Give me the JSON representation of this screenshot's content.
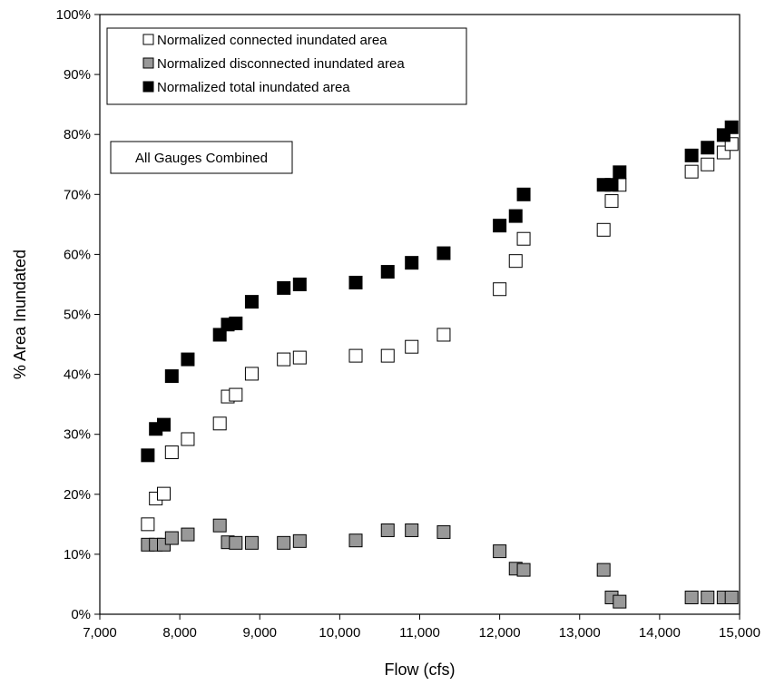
{
  "chart_data": {
    "type": "scatter",
    "title": "",
    "xlabel": "Flow (cfs)",
    "ylabel": "% Area Inundated",
    "xlim": [
      7000,
      15000
    ],
    "ylim": [
      0,
      100
    ],
    "x_ticks": [
      7000,
      8000,
      9000,
      10000,
      11000,
      12000,
      13000,
      14000,
      15000
    ],
    "x_tick_labels": [
      "7,000",
      "8,000",
      "9,000",
      "10,000",
      "11,000",
      "12,000",
      "13,000",
      "14,000",
      "15,000"
    ],
    "y_ticks": [
      0,
      10,
      20,
      30,
      40,
      50,
      60,
      70,
      80,
      90,
      100
    ],
    "y_tick_labels": [
      "0%",
      "10%",
      "20%",
      "30%",
      "40%",
      "50%",
      "60%",
      "70%",
      "80%",
      "90%",
      "100%"
    ],
    "grid": false,
    "legend_position": "top-left",
    "annotation": "All Gauges Combined",
    "series": [
      {
        "name": "Normalized connected inundated area",
        "marker": "square",
        "fill": "#ffffff",
        "stroke": "#000000",
        "points": [
          [
            7600,
            15.0
          ],
          [
            7700,
            19.3
          ],
          [
            7800,
            20.1
          ],
          [
            7900,
            27.0
          ],
          [
            8100,
            29.2
          ],
          [
            8500,
            31.8
          ],
          [
            8600,
            36.3
          ],
          [
            8700,
            36.6
          ],
          [
            8900,
            40.1
          ],
          [
            9300,
            42.5
          ],
          [
            9500,
            42.8
          ],
          [
            10200,
            43.1
          ],
          [
            10600,
            43.1
          ],
          [
            10900,
            44.6
          ],
          [
            11300,
            46.6
          ],
          [
            12000,
            54.2
          ],
          [
            12200,
            58.9
          ],
          [
            12300,
            62.6
          ],
          [
            13300,
            64.1
          ],
          [
            13400,
            68.9
          ],
          [
            13500,
            71.6
          ],
          [
            14400,
            73.8
          ],
          [
            14600,
            75.0
          ],
          [
            14800,
            77.0
          ],
          [
            14900,
            78.4
          ]
        ]
      },
      {
        "name": "Normalized disconnected inundated area",
        "marker": "square",
        "fill": "#999999",
        "stroke": "#000000",
        "points": [
          [
            7600,
            11.6
          ],
          [
            7700,
            11.6
          ],
          [
            7800,
            11.6
          ],
          [
            7900,
            12.7
          ],
          [
            8100,
            13.3
          ],
          [
            8500,
            14.8
          ],
          [
            8600,
            12.0
          ],
          [
            8700,
            11.9
          ],
          [
            8900,
            11.9
          ],
          [
            9300,
            11.9
          ],
          [
            9500,
            12.2
          ],
          [
            10200,
            12.3
          ],
          [
            10600,
            14.0
          ],
          [
            10900,
            14.0
          ],
          [
            11300,
            13.7
          ],
          [
            12000,
            10.5
          ],
          [
            12200,
            7.6
          ],
          [
            12300,
            7.4
          ],
          [
            13300,
            7.4
          ],
          [
            13400,
            2.8
          ],
          [
            13500,
            2.1
          ],
          [
            14400,
            2.8
          ],
          [
            14600,
            2.8
          ],
          [
            14800,
            2.8
          ],
          [
            14900,
            2.8
          ]
        ]
      },
      {
        "name": "Normalized total inundated area",
        "marker": "square",
        "fill": "#000000",
        "stroke": "#000000",
        "points": [
          [
            7600,
            26.5
          ],
          [
            7700,
            30.9
          ],
          [
            7800,
            31.6
          ],
          [
            7900,
            39.7
          ],
          [
            8100,
            42.5
          ],
          [
            8500,
            46.6
          ],
          [
            8600,
            48.3
          ],
          [
            8700,
            48.5
          ],
          [
            8900,
            52.1
          ],
          [
            9300,
            54.4
          ],
          [
            9500,
            55.0
          ],
          [
            10200,
            55.3
          ],
          [
            10600,
            57.1
          ],
          [
            10900,
            58.6
          ],
          [
            11300,
            60.2
          ],
          [
            12000,
            64.8
          ],
          [
            12200,
            66.4
          ],
          [
            12300,
            70.0
          ],
          [
            13300,
            71.6
          ],
          [
            13400,
            71.6
          ],
          [
            13500,
            73.7
          ],
          [
            14400,
            76.5
          ],
          [
            14600,
            77.8
          ],
          [
            14800,
            79.9
          ],
          [
            14900,
            81.2
          ]
        ]
      }
    ]
  }
}
